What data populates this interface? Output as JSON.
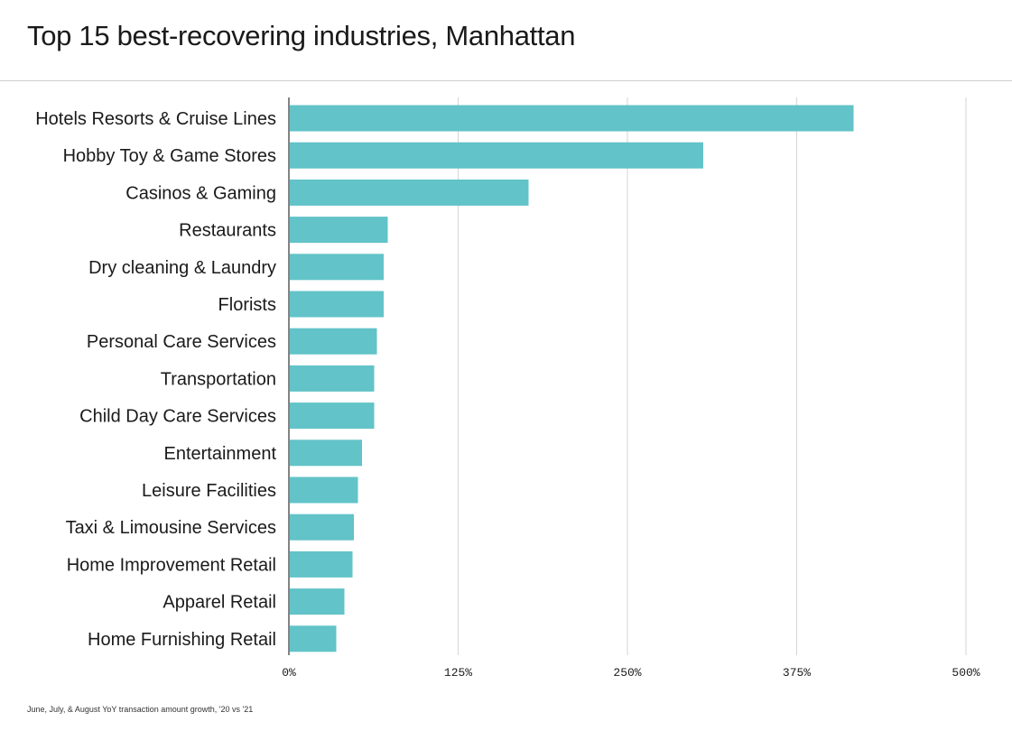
{
  "chart_data": {
    "type": "bar",
    "orientation": "horizontal",
    "title": "Top 15 best-recovering industries, Manhattan",
    "footnote": "June, July, & August YoY transaction amount growth, '20 vs '21",
    "categories": [
      "Hotels Resorts & Cruise Lines",
      "Hobby Toy & Game Stores",
      "Casinos & Gaming",
      "Restaurants",
      "Dry cleaning & Laundry",
      "Florists",
      "Personal Care Services",
      "Transportation",
      "Child Day Care Services",
      "Entertainment",
      "Leisure Facilities",
      "Taxi & Limousine Services",
      "Home Improvement Retail",
      "Apparel Retail",
      "Home Furnishing Retail"
    ],
    "values": [
      417,
      306,
      177,
      73,
      70,
      70,
      65,
      63,
      63,
      54,
      51,
      48,
      47,
      41,
      35
    ],
    "xlim": [
      0,
      500
    ],
    "xticks": [
      0,
      125,
      250,
      375,
      500
    ],
    "xtick_labels": [
      "0%",
      "125%",
      "250%",
      "375%",
      "500%"
    ],
    "grid": "vertical",
    "bar_color": "#62c3c8"
  }
}
